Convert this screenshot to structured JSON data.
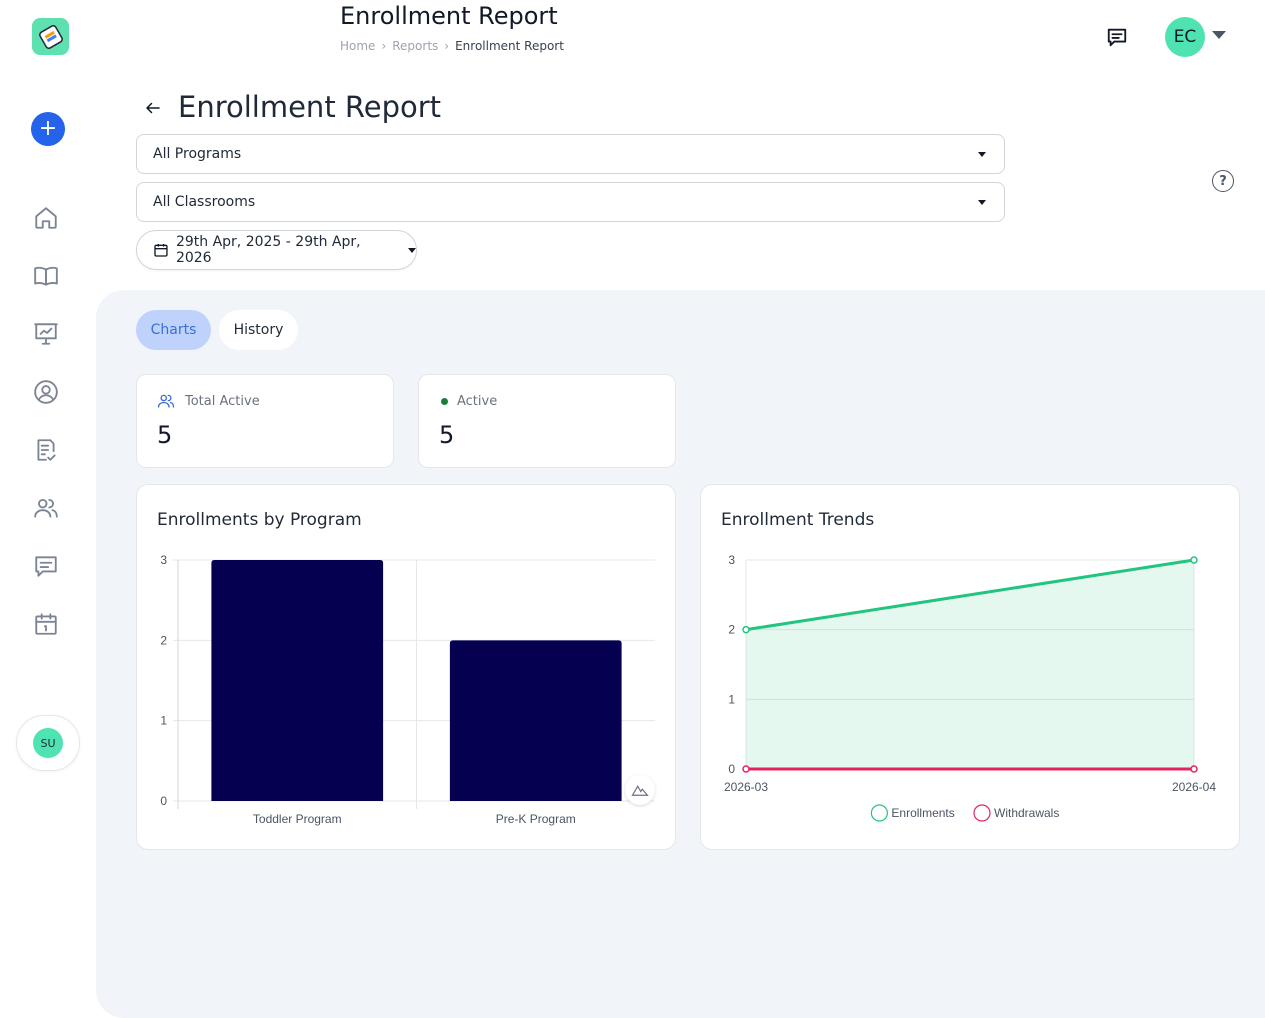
{
  "header": {
    "title": "Enrollment Report",
    "breadcrumb": [
      "Home",
      "Reports",
      "Enrollment Report"
    ],
    "avatar_initials": "EC",
    "icons": [
      "message-icon",
      "chevron-down-icon"
    ]
  },
  "sidebar": {
    "logo_icon": "app-logo",
    "add_label": "+",
    "items": [
      {
        "name": "home",
        "icon": "home-icon"
      },
      {
        "name": "programs",
        "icon": "book-icon"
      },
      {
        "name": "reports",
        "icon": "presentation-chart-icon"
      },
      {
        "name": "profile",
        "icon": "user-circle-icon"
      },
      {
        "name": "tasks",
        "icon": "clipboard-check-icon"
      },
      {
        "name": "people",
        "icon": "users-icon"
      },
      {
        "name": "messages",
        "icon": "message-icon"
      },
      {
        "name": "calendar",
        "icon": "calendar-icon"
      }
    ],
    "user_initials": "SU"
  },
  "page": {
    "title": "Enrollment Report",
    "program_select": "All Programs",
    "classroom_select": "All Classrooms",
    "date_range": "29th Apr, 2025 - 29th Apr, 2026",
    "help_label": "?"
  },
  "tabs": [
    {
      "label": "Charts",
      "active": true
    },
    {
      "label": "History",
      "active": false
    }
  ],
  "stats": [
    {
      "label": "Total Active",
      "value": "5",
      "icon": "users-icon"
    },
    {
      "label": "Active",
      "value": "5",
      "icon": "status-dot-icon"
    }
  ],
  "colors": {
    "accent": "#2563eb",
    "bar": "#05004f",
    "enrollments": "#22c57f",
    "withdrawals": "#e0245e",
    "main_bg": "#f1f4f8"
  },
  "chart_data": [
    {
      "type": "bar",
      "title": "Enrollments by Program",
      "categories": [
        "Toddler Program",
        "Pre-K Program"
      ],
      "values": [
        3,
        2
      ],
      "ylim": [
        0,
        3
      ],
      "yticks": [
        "0",
        "1",
        "2",
        "3"
      ],
      "grid": true
    },
    {
      "type": "area",
      "title": "Enrollment Trends",
      "x": [
        "2026-03",
        "2026-04"
      ],
      "series": [
        {
          "name": "Enrollments",
          "values": [
            2,
            3
          ]
        },
        {
          "name": "Withdrawals",
          "values": [
            0,
            0
          ]
        }
      ],
      "ylim": [
        0,
        3
      ],
      "yticks": [
        "0",
        "1",
        "2",
        "3"
      ],
      "legend": "bottom",
      "grid": true
    }
  ]
}
